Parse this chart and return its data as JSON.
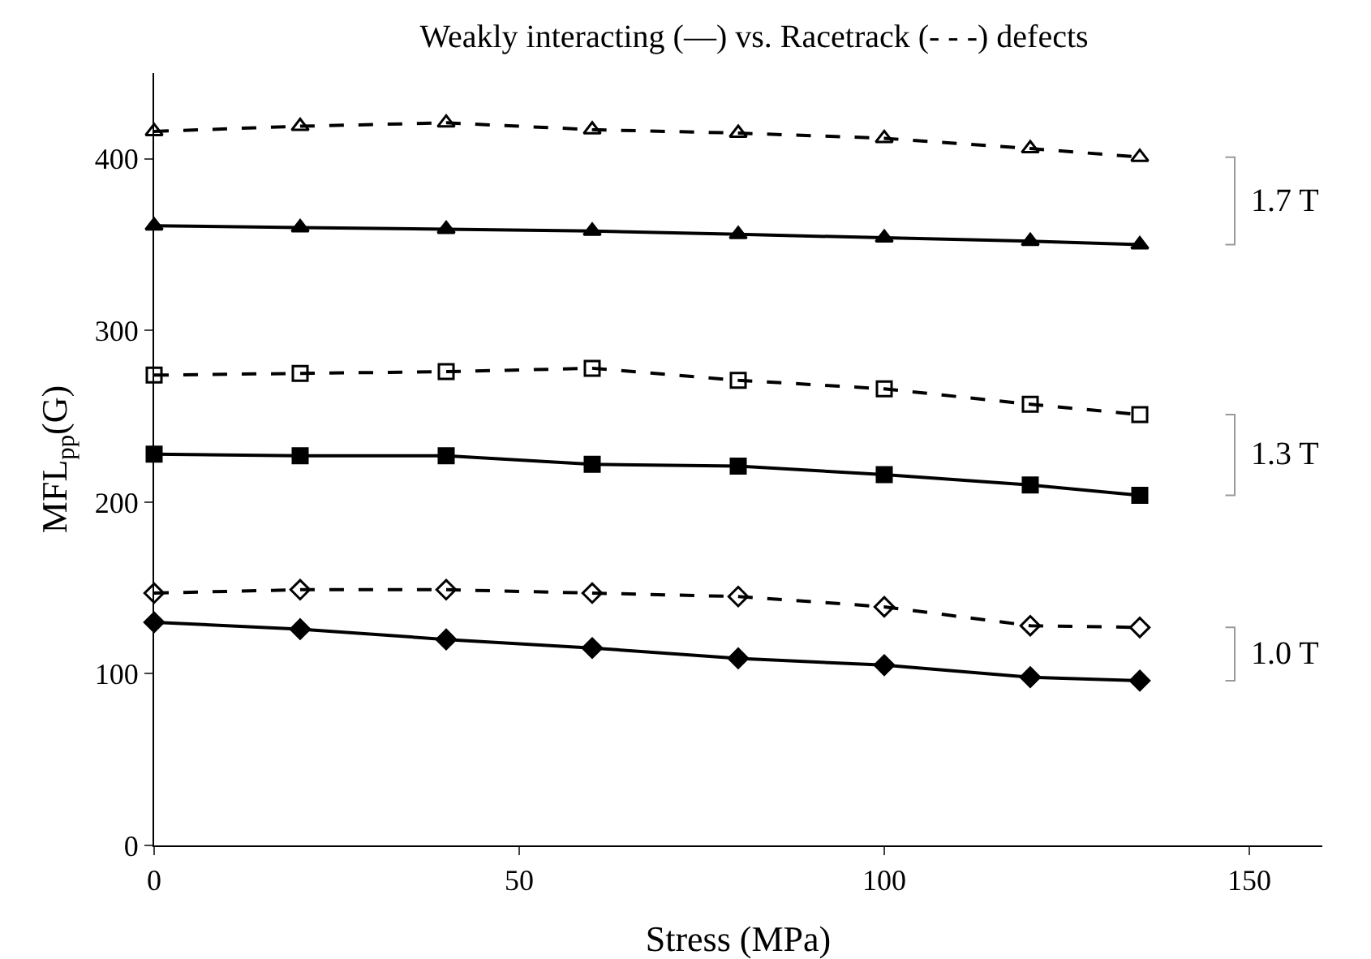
{
  "chart_data": {
    "type": "line",
    "title": "Weakly interacting (—) vs. Racetrack (- - -) defects",
    "xlabel": "Stress (MPa)",
    "ylabel": "MFL$_{pp}$(G)",
    "x": [
      0,
      20,
      40,
      60,
      80,
      100,
      120,
      135
    ],
    "series": [
      {
        "color": "#000000",
        "marker": "triangle",
        "line_style": "dashed",
        "values": [
          416,
          419,
          421,
          417,
          415,
          412,
          406,
          401
        ]
      },
      {
        "color": "#000000",
        "marker": "triangle",
        "line_style": "solid",
        "values": [
          361,
          360,
          359,
          358,
          356,
          354,
          352,
          350
        ]
      },
      {
        "color": "#000000",
        "marker": "square",
        "line_style": "dashed",
        "values": [
          274,
          275,
          276,
          278,
          271,
          266,
          257,
          251
        ]
      },
      {
        "color": "#000000",
        "marker": "square",
        "line_style": "solid",
        "values": [
          228,
          227,
          227,
          222,
          221,
          216,
          210,
          204
        ]
      },
      {
        "color": "#000000",
        "marker": "diamond",
        "line_style": "dashed",
        "values": [
          147,
          149,
          149,
          147,
          145,
          139,
          128,
          127
        ]
      },
      {
        "color": "#000000",
        "marker": "diamond",
        "line_style": "solid",
        "values": [
          130,
          126,
          120,
          115,
          109,
          105,
          98,
          96
        ]
      }
    ],
    "annotations": [
      "1.7 T",
      "1.3 T",
      "1.0 T"
    ],
    "xlim": [
      0,
      160
    ],
    "ylim": [
      0,
      450
    ],
    "xticks": [
      0,
      50,
      100,
      150
    ],
    "yticks": [
      0,
      100,
      200,
      300,
      400
    ],
    "grid": false
  }
}
